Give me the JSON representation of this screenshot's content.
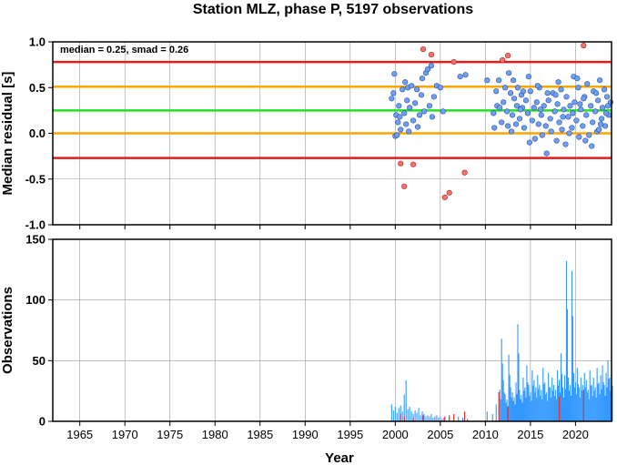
{
  "title": "Station MLZ, phase P, 5197 observations",
  "colors": {
    "red": "#e41a1c",
    "orange": "#ffa500",
    "green": "#22e022",
    "point_blue": "#6da0f5",
    "point_red": "#f7706a",
    "bar_blue": "#3399ff",
    "bar_red": "#e03030"
  },
  "chart_data": [
    {
      "type": "scatter",
      "name": "residuals",
      "xlabel": "",
      "ylabel": "Median residual [s]",
      "xlim": [
        1962,
        2024
      ],
      "ylim": [
        -1.0,
        1.0
      ],
      "yticks": [
        -1.0,
        -0.5,
        0.0,
        0.5,
        1.0
      ],
      "ytick_labels": [
        "-1.0",
        "-0.5",
        "0.0",
        "0.5",
        "1.0"
      ],
      "xticks": [
        1965,
        1970,
        1975,
        1980,
        1985,
        1990,
        1995,
        2000,
        2005,
        2010,
        2015,
        2020
      ],
      "grid": true,
      "annotation": "median = 0.25, smad = 0.26",
      "annotation_position": "top-left",
      "hlines": [
        {
          "y": 0.78,
          "color": "red"
        },
        {
          "y": 0.51,
          "color": "orange"
        },
        {
          "y": 0.25,
          "color": "green"
        },
        {
          "y": 0.0,
          "color": "orange"
        },
        {
          "y": -0.27,
          "color": "red"
        }
      ],
      "points_in": [
        [
          1999.6,
          0.38
        ],
        [
          1999.8,
          0.44
        ],
        [
          1999.9,
          0.65
        ],
        [
          2000.0,
          -0.03
        ],
        [
          2000.1,
          0.2
        ],
        [
          2000.2,
          -0.02
        ],
        [
          2000.3,
          0.12
        ],
        [
          2000.4,
          0.3
        ],
        [
          2000.5,
          0.18
        ],
        [
          2000.6,
          0.04
        ],
        [
          2000.8,
          0.48
        ],
        [
          2001.0,
          0.22
        ],
        [
          2001.1,
          0.56
        ],
        [
          2001.2,
          0.1
        ],
        [
          2001.3,
          0.36
        ],
        [
          2001.4,
          0.5
        ],
        [
          2001.5,
          0.02
        ],
        [
          2001.6,
          0.28
        ],
        [
          2001.8,
          0.52
        ],
        [
          2002.0,
          0.14
        ],
        [
          2002.2,
          0.33
        ],
        [
          2002.4,
          0.48
        ],
        [
          2002.5,
          0.07
        ],
        [
          2002.7,
          0.2
        ],
        [
          2002.9,
          0.42
        ],
        [
          2003.0,
          0.6
        ],
        [
          2003.2,
          0.24
        ],
        [
          2003.4,
          0.66
        ],
        [
          2003.6,
          0.7
        ],
        [
          2003.8,
          0.3
        ],
        [
          2004.0,
          0.74
        ],
        [
          2004.1,
          0.18
        ],
        [
          2004.3,
          0.4
        ],
        [
          2004.6,
          0.52
        ],
        [
          2005.0,
          0.5
        ],
        [
          2005.3,
          0.24
        ],
        [
          2007.2,
          0.62
        ],
        [
          2007.8,
          0.64
        ],
        [
          2010.2,
          0.58
        ],
        [
          2010.9,
          0.22
        ],
        [
          2011.0,
          0.06
        ],
        [
          2011.2,
          0.46
        ],
        [
          2011.3,
          0.3
        ],
        [
          2011.5,
          0.58
        ],
        [
          2011.8,
          0.12
        ],
        [
          2012.0,
          0.34
        ],
        [
          2012.2,
          0.5
        ],
        [
          2012.4,
          0.24
        ],
        [
          2012.6,
          0.66
        ],
        [
          2012.8,
          0.44
        ],
        [
          2013.0,
          0.2
        ],
        [
          2013.1,
          0.58
        ],
        [
          2013.2,
          0.38
        ],
        [
          2013.4,
          0.1
        ],
        [
          2013.5,
          0.3
        ],
        [
          2013.6,
          0.5
        ],
        [
          2013.8,
          0.16
        ],
        [
          2014.0,
          0.42
        ],
        [
          2014.1,
          0.28
        ],
        [
          2014.3,
          0.06
        ],
        [
          2014.5,
          0.36
        ],
        [
          2014.7,
          0.22
        ],
        [
          2014.9,
          -0.1
        ],
        [
          2015.0,
          0.46
        ],
        [
          2015.2,
          0.14
        ],
        [
          2015.4,
          0.28
        ],
        [
          2015.5,
          -0.06
        ],
        [
          2015.7,
          0.34
        ],
        [
          2015.9,
          0.1
        ],
        [
          2016.0,
          0.5
        ],
        [
          2016.2,
          0.2
        ],
        [
          2016.3,
          -0.02
        ],
        [
          2016.5,
          0.3
        ],
        [
          2016.7,
          0.08
        ],
        [
          2016.8,
          -0.22
        ],
        [
          2017.0,
          0.36
        ],
        [
          2017.2,
          0.16
        ],
        [
          2017.3,
          0.02
        ],
        [
          2017.5,
          0.44
        ],
        [
          2017.7,
          0.24
        ],
        [
          2017.9,
          -0.08
        ],
        [
          2018.0,
          0.32
        ],
        [
          2018.2,
          0.12
        ],
        [
          2018.4,
          0.48
        ],
        [
          2018.5,
          0.04
        ],
        [
          2018.7,
          0.26
        ],
        [
          2018.9,
          -0.12
        ],
        [
          2019.0,
          0.4
        ],
        [
          2019.2,
          0.18
        ],
        [
          2019.4,
          0.3
        ],
        [
          2019.6,
          0.06
        ],
        [
          2019.8,
          0.62
        ],
        [
          2019.9,
          0.34
        ],
        [
          2020.1,
          0.14
        ],
        [
          2020.3,
          0.5
        ],
        [
          2020.4,
          -0.04
        ],
        [
          2020.6,
          0.26
        ],
        [
          2020.8,
          0.08
        ],
        [
          2021.0,
          0.4
        ],
        [
          2021.2,
          0.2
        ],
        [
          2021.3,
          0.54
        ],
        [
          2021.5,
          -0.02
        ],
        [
          2021.7,
          0.3
        ],
        [
          2021.9,
          0.12
        ],
        [
          2022.0,
          0.46
        ],
        [
          2022.2,
          0.24
        ],
        [
          2022.4,
          0.02
        ],
        [
          2022.5,
          0.36
        ],
        [
          2022.7,
          0.58
        ],
        [
          2022.9,
          0.16
        ],
        [
          2023.0,
          0.28
        ],
        [
          2023.2,
          0.48
        ],
        [
          2023.3,
          0.08
        ],
        [
          2023.5,
          0.4
        ],
        [
          2023.7,
          0.2
        ],
        [
          2023.9,
          0.34
        ],
        [
          2012.9,
          0.02
        ],
        [
          2013.9,
          0.26
        ],
        [
          2014.8,
          0.62
        ],
        [
          2016.9,
          0.44
        ],
        [
          2018.1,
          0.56
        ],
        [
          2019.3,
          0.0
        ],
        [
          2020.9,
          0.38
        ],
        [
          2021.8,
          -0.14
        ],
        [
          2022.8,
          0.1
        ],
        [
          2023.4,
          0.22
        ],
        [
          2011.6,
          0.28
        ],
        [
          2012.5,
          0.08
        ],
        [
          2015.8,
          0.52
        ],
        [
          2017.8,
          0.42
        ],
        [
          2019.7,
          0.22
        ],
        [
          2020.5,
          0.32
        ],
        [
          2021.1,
          -0.08
        ],
        [
          2022.3,
          0.44
        ],
        [
          2023.6,
          0.3
        ],
        [
          2014.2,
          0.46
        ],
        [
          2016.1,
          0.26
        ],
        [
          2018.6,
          0.18
        ],
        [
          2020.2,
          0.6
        ],
        [
          2022.6,
          0.04
        ]
      ],
      "points_out": [
        [
          2000.6,
          -0.33
        ],
        [
          2001.0,
          -0.58
        ],
        [
          2002.0,
          -0.34
        ],
        [
          2003.1,
          0.92
        ],
        [
          2004.0,
          0.86
        ],
        [
          2005.5,
          -0.7
        ],
        [
          2006.0,
          -0.65
        ],
        [
          2006.5,
          0.78
        ],
        [
          2007.7,
          -0.43
        ],
        [
          2011.9,
          0.8
        ],
        [
          2012.5,
          0.85
        ],
        [
          2020.9,
          0.96
        ]
      ]
    },
    {
      "type": "bar",
      "name": "observations",
      "xlabel": "Year",
      "ylabel": "Observations",
      "xlim": [
        1962,
        2024
      ],
      "ylim": [
        0,
        150
      ],
      "yticks": [
        0,
        50,
        100,
        150
      ],
      "ytick_labels": [
        "0",
        "50",
        "100",
        "150"
      ],
      "xticks": [
        1965,
        1970,
        1975,
        1980,
        1985,
        1990,
        1995,
        2000,
        2005,
        2010,
        2015,
        2020
      ],
      "xtick_labels": [
        "1965",
        "1970",
        "1975",
        "1980",
        "1985",
        "1990",
        "1995",
        "2000",
        "2005",
        "2010",
        "2015",
        "2020"
      ],
      "grid": true,
      "bars_in": [
        [
          1999.6,
          14
        ],
        [
          1999.8,
          9
        ],
        [
          2000.0,
          12
        ],
        [
          2000.2,
          7
        ],
        [
          2000.4,
          11
        ],
        [
          2000.6,
          13
        ],
        [
          2000.8,
          8
        ],
        [
          2001.0,
          22
        ],
        [
          2001.2,
          34
        ],
        [
          2001.4,
          10
        ],
        [
          2001.6,
          12
        ],
        [
          2001.8,
          8
        ],
        [
          2002.0,
          6
        ],
        [
          2002.2,
          9
        ],
        [
          2002.4,
          7
        ],
        [
          2002.6,
          11
        ],
        [
          2002.8,
          5
        ],
        [
          2003.0,
          8
        ],
        [
          2003.2,
          6
        ],
        [
          2003.4,
          4
        ],
        [
          2003.6,
          5
        ],
        [
          2003.8,
          4
        ],
        [
          2004.0,
          6
        ],
        [
          2004.2,
          3
        ],
        [
          2004.4,
          4
        ],
        [
          2004.6,
          5
        ],
        [
          2004.8,
          3
        ],
        [
          2005.0,
          4
        ],
        [
          2005.2,
          2
        ],
        [
          2005.4,
          3
        ],
        [
          2007.0,
          4
        ],
        [
          2007.5,
          3
        ],
        [
          2008.0,
          2
        ],
        [
          2010.2,
          8
        ],
        [
          2010.8,
          6
        ],
        [
          2011.2,
          14
        ],
        [
          2011.6,
          26
        ],
        [
          2011.8,
          68
        ],
        [
          2012.0,
          34
        ],
        [
          2012.2,
          22
        ],
        [
          2012.4,
          18
        ],
        [
          2012.6,
          55
        ],
        [
          2012.8,
          28
        ],
        [
          2013.0,
          24
        ],
        [
          2013.2,
          20
        ],
        [
          2013.4,
          32
        ],
        [
          2013.6,
          80
        ],
        [
          2013.8,
          26
        ],
        [
          2014.0,
          22
        ],
        [
          2014.2,
          36
        ],
        [
          2014.4,
          28
        ],
        [
          2014.6,
          46
        ],
        [
          2014.8,
          30
        ],
        [
          2015.0,
          24
        ],
        [
          2015.2,
          42
        ],
        [
          2015.4,
          34
        ],
        [
          2015.6,
          28
        ],
        [
          2015.8,
          38
        ],
        [
          2016.0,
          30
        ],
        [
          2016.2,
          26
        ],
        [
          2016.4,
          44
        ],
        [
          2016.6,
          32
        ],
        [
          2016.8,
          24
        ],
        [
          2017.0,
          40
        ],
        [
          2017.2,
          28
        ],
        [
          2017.4,
          36
        ],
        [
          2017.6,
          30
        ],
        [
          2017.8,
          26
        ],
        [
          2018.0,
          42
        ],
        [
          2018.2,
          34
        ],
        [
          2018.4,
          56
        ],
        [
          2018.6,
          28
        ],
        [
          2018.8,
          38
        ],
        [
          2019.0,
          132
        ],
        [
          2019.2,
          36
        ],
        [
          2019.4,
          30
        ],
        [
          2019.6,
          124
        ],
        [
          2019.8,
          40
        ],
        [
          2020.0,
          32
        ],
        [
          2020.2,
          44
        ],
        [
          2020.4,
          28
        ],
        [
          2020.6,
          36
        ],
        [
          2020.8,
          30
        ],
        [
          2021.0,
          40
        ],
        [
          2021.2,
          34
        ],
        [
          2021.4,
          26
        ],
        [
          2021.6,
          42
        ],
        [
          2021.8,
          30
        ],
        [
          2022.0,
          36
        ],
        [
          2022.2,
          28
        ],
        [
          2022.4,
          44
        ],
        [
          2022.6,
          32
        ],
        [
          2022.8,
          38
        ],
        [
          2023.0,
          46
        ],
        [
          2023.2,
          30
        ],
        [
          2023.4,
          40
        ],
        [
          2023.6,
          50
        ],
        [
          2023.8,
          36
        ],
        [
          2024.0,
          42
        ]
      ],
      "bars_out": [
        [
          2000.6,
          6
        ],
        [
          2001.0,
          4
        ],
        [
          2002.0,
          3
        ],
        [
          2003.1,
          5
        ],
        [
          2005.5,
          4
        ],
        [
          2006.0,
          5
        ],
        [
          2006.5,
          6
        ],
        [
          2007.7,
          8
        ],
        [
          2011.5,
          24
        ],
        [
          2012.5,
          12
        ],
        [
          2018.2,
          20
        ],
        [
          2020.9,
          26
        ]
      ]
    }
  ]
}
